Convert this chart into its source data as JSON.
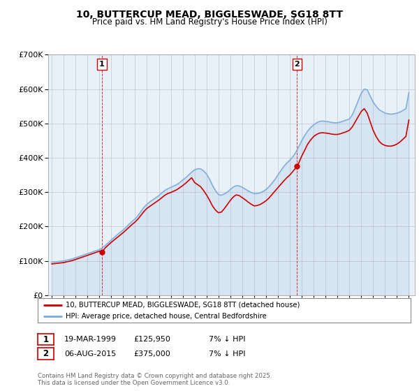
{
  "title": "10, BUTTERCUP MEAD, BIGGLESWADE, SG18 8TT",
  "subtitle": "Price paid vs. HM Land Registry's House Price Index (HPI)",
  "legend_line1": "10, BUTTERCUP MEAD, BIGGLESWADE, SG18 8TT (detached house)",
  "legend_line2": "HPI: Average price, detached house, Central Bedfordshire",
  "annotation1_label": "1",
  "annotation1_date": "19-MAR-1999",
  "annotation1_price": "£125,950",
  "annotation1_note": "7% ↓ HPI",
  "annotation2_label": "2",
  "annotation2_date": "06-AUG-2015",
  "annotation2_price": "£375,000",
  "annotation2_note": "7% ↓ HPI",
  "footnote": "Contains HM Land Registry data © Crown copyright and database right 2025.\nThis data is licensed under the Open Government Licence v3.0.",
  "red_color": "#cc0000",
  "blue_color": "#aaccee",
  "blue_line_color": "#7aaadd",
  "annotation_color": "#cc0000",
  "background_color": "#ffffff",
  "chart_bg_color": "#e8f0f8",
  "ylim": [
    0,
    700000
  ],
  "yticks": [
    0,
    100000,
    200000,
    300000,
    400000,
    500000,
    600000,
    700000
  ],
  "sale1_x": 1999.21,
  "sale1_y": 125950,
  "sale2_x": 2015.6,
  "sale2_y": 375000,
  "xmin": 1994.7,
  "xmax": 2025.5,
  "hpi_years": [
    1995.0,
    1995.25,
    1995.5,
    1995.75,
    1996.0,
    1996.25,
    1996.5,
    1996.75,
    1997.0,
    1997.25,
    1997.5,
    1997.75,
    1998.0,
    1998.25,
    1998.5,
    1998.75,
    1999.0,
    1999.25,
    1999.5,
    1999.75,
    2000.0,
    2000.25,
    2000.5,
    2000.75,
    2001.0,
    2001.25,
    2001.5,
    2001.75,
    2002.0,
    2002.25,
    2002.5,
    2002.75,
    2003.0,
    2003.25,
    2003.5,
    2003.75,
    2004.0,
    2004.25,
    2004.5,
    2004.75,
    2005.0,
    2005.25,
    2005.5,
    2005.75,
    2006.0,
    2006.25,
    2006.5,
    2006.75,
    2007.0,
    2007.25,
    2007.5,
    2007.75,
    2008.0,
    2008.25,
    2008.5,
    2008.75,
    2009.0,
    2009.25,
    2009.5,
    2009.75,
    2010.0,
    2010.25,
    2010.5,
    2010.75,
    2011.0,
    2011.25,
    2011.5,
    2011.75,
    2012.0,
    2012.25,
    2012.5,
    2012.75,
    2013.0,
    2013.25,
    2013.5,
    2013.75,
    2014.0,
    2014.25,
    2014.5,
    2014.75,
    2015.0,
    2015.25,
    2015.5,
    2015.75,
    2016.0,
    2016.25,
    2016.5,
    2016.75,
    2017.0,
    2017.25,
    2017.5,
    2017.75,
    2018.0,
    2018.25,
    2018.5,
    2018.75,
    2019.0,
    2019.25,
    2019.5,
    2019.75,
    2020.0,
    2020.25,
    2020.5,
    2020.75,
    2021.0,
    2021.25,
    2021.5,
    2021.75,
    2022.0,
    2022.25,
    2022.5,
    2022.75,
    2023.0,
    2023.25,
    2023.5,
    2023.75,
    2024.0,
    2024.25,
    2024.5,
    2024.75,
    2025.0
  ],
  "hpi_values": [
    96000,
    97000,
    98000,
    99000,
    100000,
    102000,
    104000,
    106000,
    109000,
    112000,
    115000,
    118000,
    121000,
    124000,
    127000,
    130000,
    133000,
    138000,
    145000,
    153000,
    161000,
    168000,
    176000,
    183000,
    190000,
    198000,
    207000,
    215000,
    222000,
    232000,
    244000,
    256000,
    265000,
    272000,
    278000,
    284000,
    290000,
    298000,
    305000,
    310000,
    314000,
    318000,
    322000,
    328000,
    335000,
    342000,
    350000,
    358000,
    365000,
    368000,
    368000,
    362000,
    353000,
    338000,
    320000,
    305000,
    293000,
    291000,
    295000,
    300000,
    308000,
    315000,
    319000,
    318000,
    314000,
    309000,
    304000,
    299000,
    296000,
    296000,
    298000,
    302000,
    308000,
    316000,
    326000,
    337000,
    350000,
    363000,
    375000,
    385000,
    393000,
    403000,
    416000,
    432000,
    450000,
    465000,
    478000,
    488000,
    496000,
    502000,
    506000,
    507000,
    506000,
    505000,
    503000,
    502000,
    502000,
    504000,
    507000,
    510000,
    513000,
    525000,
    545000,
    567000,
    588000,
    600000,
    598000,
    580000,
    562000,
    550000,
    540000,
    535000,
    530000,
    528000,
    527000,
    528000,
    530000,
    533000,
    538000,
    543000,
    590000
  ],
  "red_years": [
    1995.0,
    1995.25,
    1995.5,
    1995.75,
    1996.0,
    1996.25,
    1996.5,
    1996.75,
    1997.0,
    1997.25,
    1997.5,
    1997.75,
    1998.0,
    1998.25,
    1998.5,
    1998.75,
    1999.0,
    1999.21,
    1999.5,
    1999.75,
    2000.0,
    2000.25,
    2000.5,
    2000.75,
    2001.0,
    2001.25,
    2001.5,
    2001.75,
    2002.0,
    2002.25,
    2002.5,
    2002.75,
    2003.0,
    2003.25,
    2003.5,
    2003.75,
    2004.0,
    2004.25,
    2004.5,
    2004.75,
    2005.0,
    2005.25,
    2005.5,
    2005.75,
    2006.0,
    2006.25,
    2006.5,
    2006.75,
    2007.0,
    2007.25,
    2007.5,
    2007.75,
    2008.0,
    2008.25,
    2008.5,
    2008.75,
    2009.0,
    2009.25,
    2009.5,
    2009.75,
    2010.0,
    2010.25,
    2010.5,
    2010.75,
    2011.0,
    2011.25,
    2011.5,
    2011.75,
    2012.0,
    2012.25,
    2012.5,
    2012.75,
    2013.0,
    2013.25,
    2013.5,
    2013.75,
    2014.0,
    2014.25,
    2014.5,
    2014.75,
    2015.0,
    2015.25,
    2015.6,
    2015.75,
    2016.0,
    2016.25,
    2016.5,
    2016.75,
    2017.0,
    2017.25,
    2017.5,
    2017.75,
    2018.0,
    2018.25,
    2018.5,
    2018.75,
    2019.0,
    2019.25,
    2019.5,
    2019.75,
    2020.0,
    2020.25,
    2020.5,
    2020.75,
    2021.0,
    2021.25,
    2021.5,
    2021.75,
    2022.0,
    2022.25,
    2022.5,
    2022.75,
    2023.0,
    2023.25,
    2023.5,
    2023.75,
    2024.0,
    2024.25,
    2024.5,
    2024.75,
    2025.0
  ],
  "red_values": [
    91000,
    92000,
    93000,
    94000,
    95000,
    97000,
    99000,
    101000,
    104000,
    107000,
    110000,
    113000,
    116000,
    119000,
    122000,
    125000,
    128000,
    125950,
    138000,
    146000,
    154000,
    161000,
    168000,
    175000,
    182000,
    190000,
    198000,
    206000,
    213000,
    222000,
    233000,
    244000,
    253000,
    259000,
    265000,
    271000,
    277000,
    284000,
    291000,
    296000,
    299000,
    303000,
    307000,
    313000,
    319000,
    326000,
    334000,
    342000,
    328000,
    322000,
    316000,
    305000,
    292000,
    277000,
    260000,
    248000,
    240000,
    242000,
    252000,
    264000,
    276000,
    286000,
    292000,
    290000,
    284000,
    278000,
    271000,
    265000,
    260000,
    261000,
    264000,
    269000,
    275000,
    283000,
    293000,
    303000,
    313000,
    323000,
    333000,
    342000,
    350000,
    360000,
    375000,
    385000,
    405000,
    422000,
    440000,
    452000,
    462000,
    468000,
    472000,
    473000,
    472000,
    471000,
    469000,
    468000,
    468000,
    470000,
    473000,
    476000,
    480000,
    490000,
    505000,
    520000,
    535000,
    543000,
    530000,
    505000,
    480000,
    462000,
    448000,
    440000,
    436000,
    434000,
    434000,
    436000,
    440000,
    446000,
    454000,
    462000,
    510000
  ]
}
